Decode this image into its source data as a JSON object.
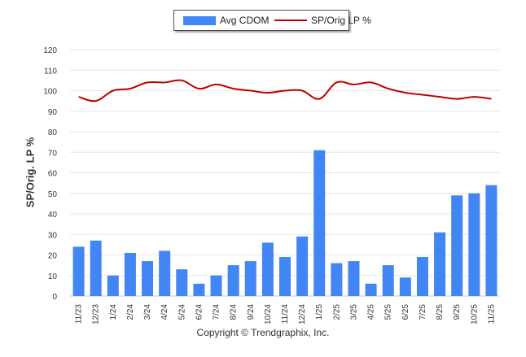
{
  "chart_data": {
    "type": "bar",
    "ylabel": "SP/Orig. LP %",
    "ylim": [
      0,
      120
    ],
    "yticks": [
      0,
      10,
      20,
      30,
      40,
      50,
      60,
      70,
      80,
      90,
      100,
      110,
      120
    ],
    "categories": [
      "11/23",
      "12/23",
      "1/24",
      "2/24",
      "3/24",
      "4/24",
      "5/24",
      "6/24",
      "7/24",
      "8/24",
      "9/24",
      "10/24",
      "11/24",
      "12/24",
      "1/25",
      "2/25",
      "3/25",
      "4/25",
      "5/25",
      "6/25",
      "7/25",
      "8/25",
      "9/25",
      "10/25",
      "11/25"
    ],
    "series": [
      {
        "name": "Avg CDOM",
        "type": "bar",
        "color": "#4285f4",
        "values": [
          24,
          27,
          10,
          21,
          17,
          22,
          13,
          6,
          10,
          15,
          17,
          26,
          19,
          29,
          71,
          16,
          17,
          6,
          15,
          9,
          19,
          31,
          49,
          50,
          54
        ]
      },
      {
        "name": "SP/Orig LP %",
        "type": "line",
        "color": "#c00000",
        "values": [
          97,
          95,
          100,
          101,
          104,
          104,
          105,
          101,
          103,
          101,
          100,
          99,
          100,
          100,
          96,
          104,
          103,
          104,
          101,
          99,
          98,
          97,
          96,
          97,
          96
        ]
      }
    ],
    "legend": "top-center",
    "grid": true
  },
  "copyright": "Copyright © Trendgraphix, Inc."
}
